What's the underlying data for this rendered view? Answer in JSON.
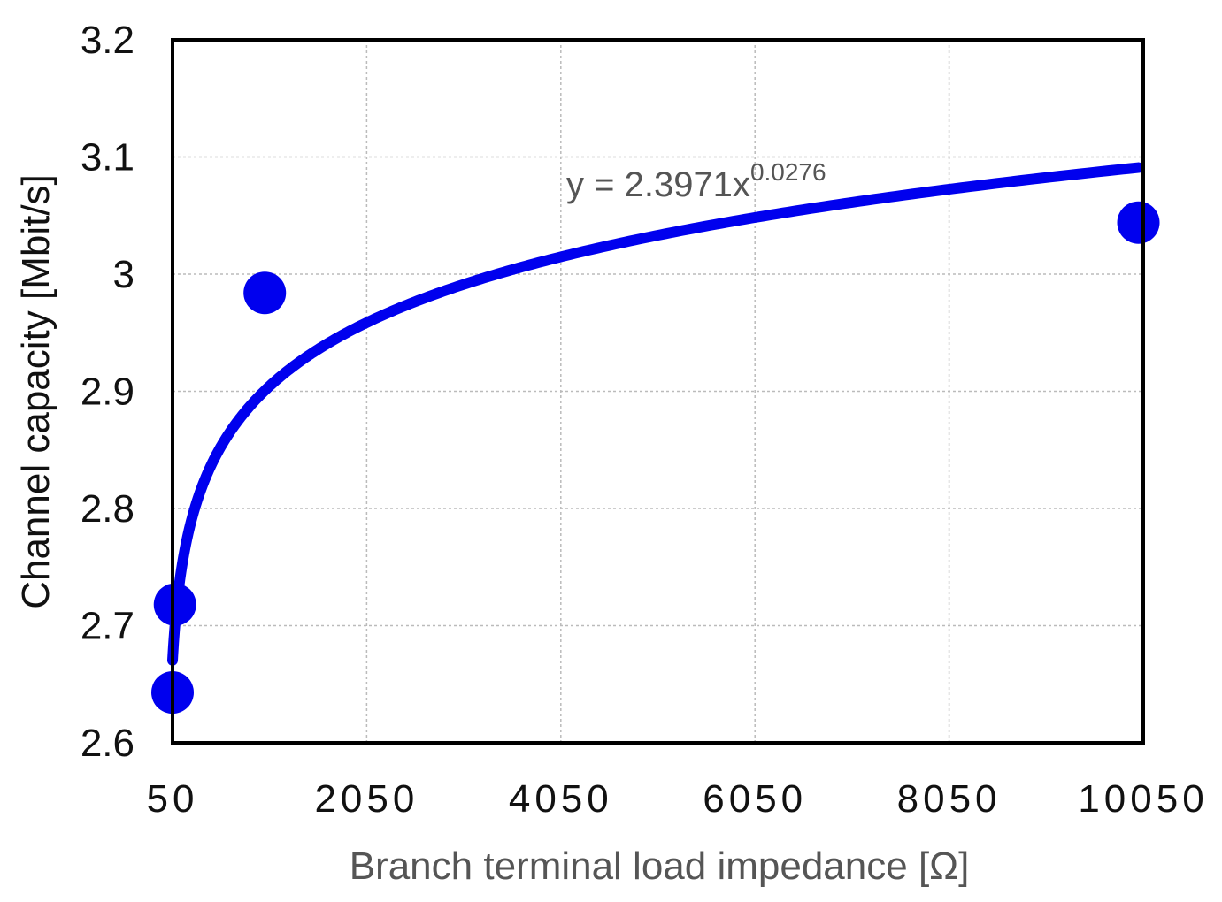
{
  "chart_data": {
    "type": "scatter",
    "title": "",
    "xlabel": "Branch terminal load impedance [Ω]",
    "ylabel": "Channel capacity [Mbit/s]",
    "xlim": [
      50,
      10050
    ],
    "ylim": [
      2.6,
      3.2
    ],
    "x_ticks": [
      50,
      2050,
      4050,
      6050,
      8050,
      10050
    ],
    "y_ticks": [
      2.6,
      2.7,
      2.8,
      2.9,
      3,
      3.1,
      3.2
    ],
    "grid": true,
    "points": [
      {
        "x": 50,
        "y": 2.643
      },
      {
        "x": 75,
        "y": 2.718
      },
      {
        "x": 1000,
        "y": 2.984
      },
      {
        "x": 10000,
        "y": 3.044
      }
    ],
    "trendline": {
      "type": "power",
      "coefficient": 2.3971,
      "exponent": 0.0276,
      "x_range": [
        50,
        10000
      ],
      "equation_prefix": "y = 2.3971x",
      "equation_exponent": "0.0276"
    },
    "colors": {
      "series": "#0000ee",
      "grid": "#bbbbbb",
      "axis_label": "#555555",
      "y_title": "#111111"
    }
  }
}
